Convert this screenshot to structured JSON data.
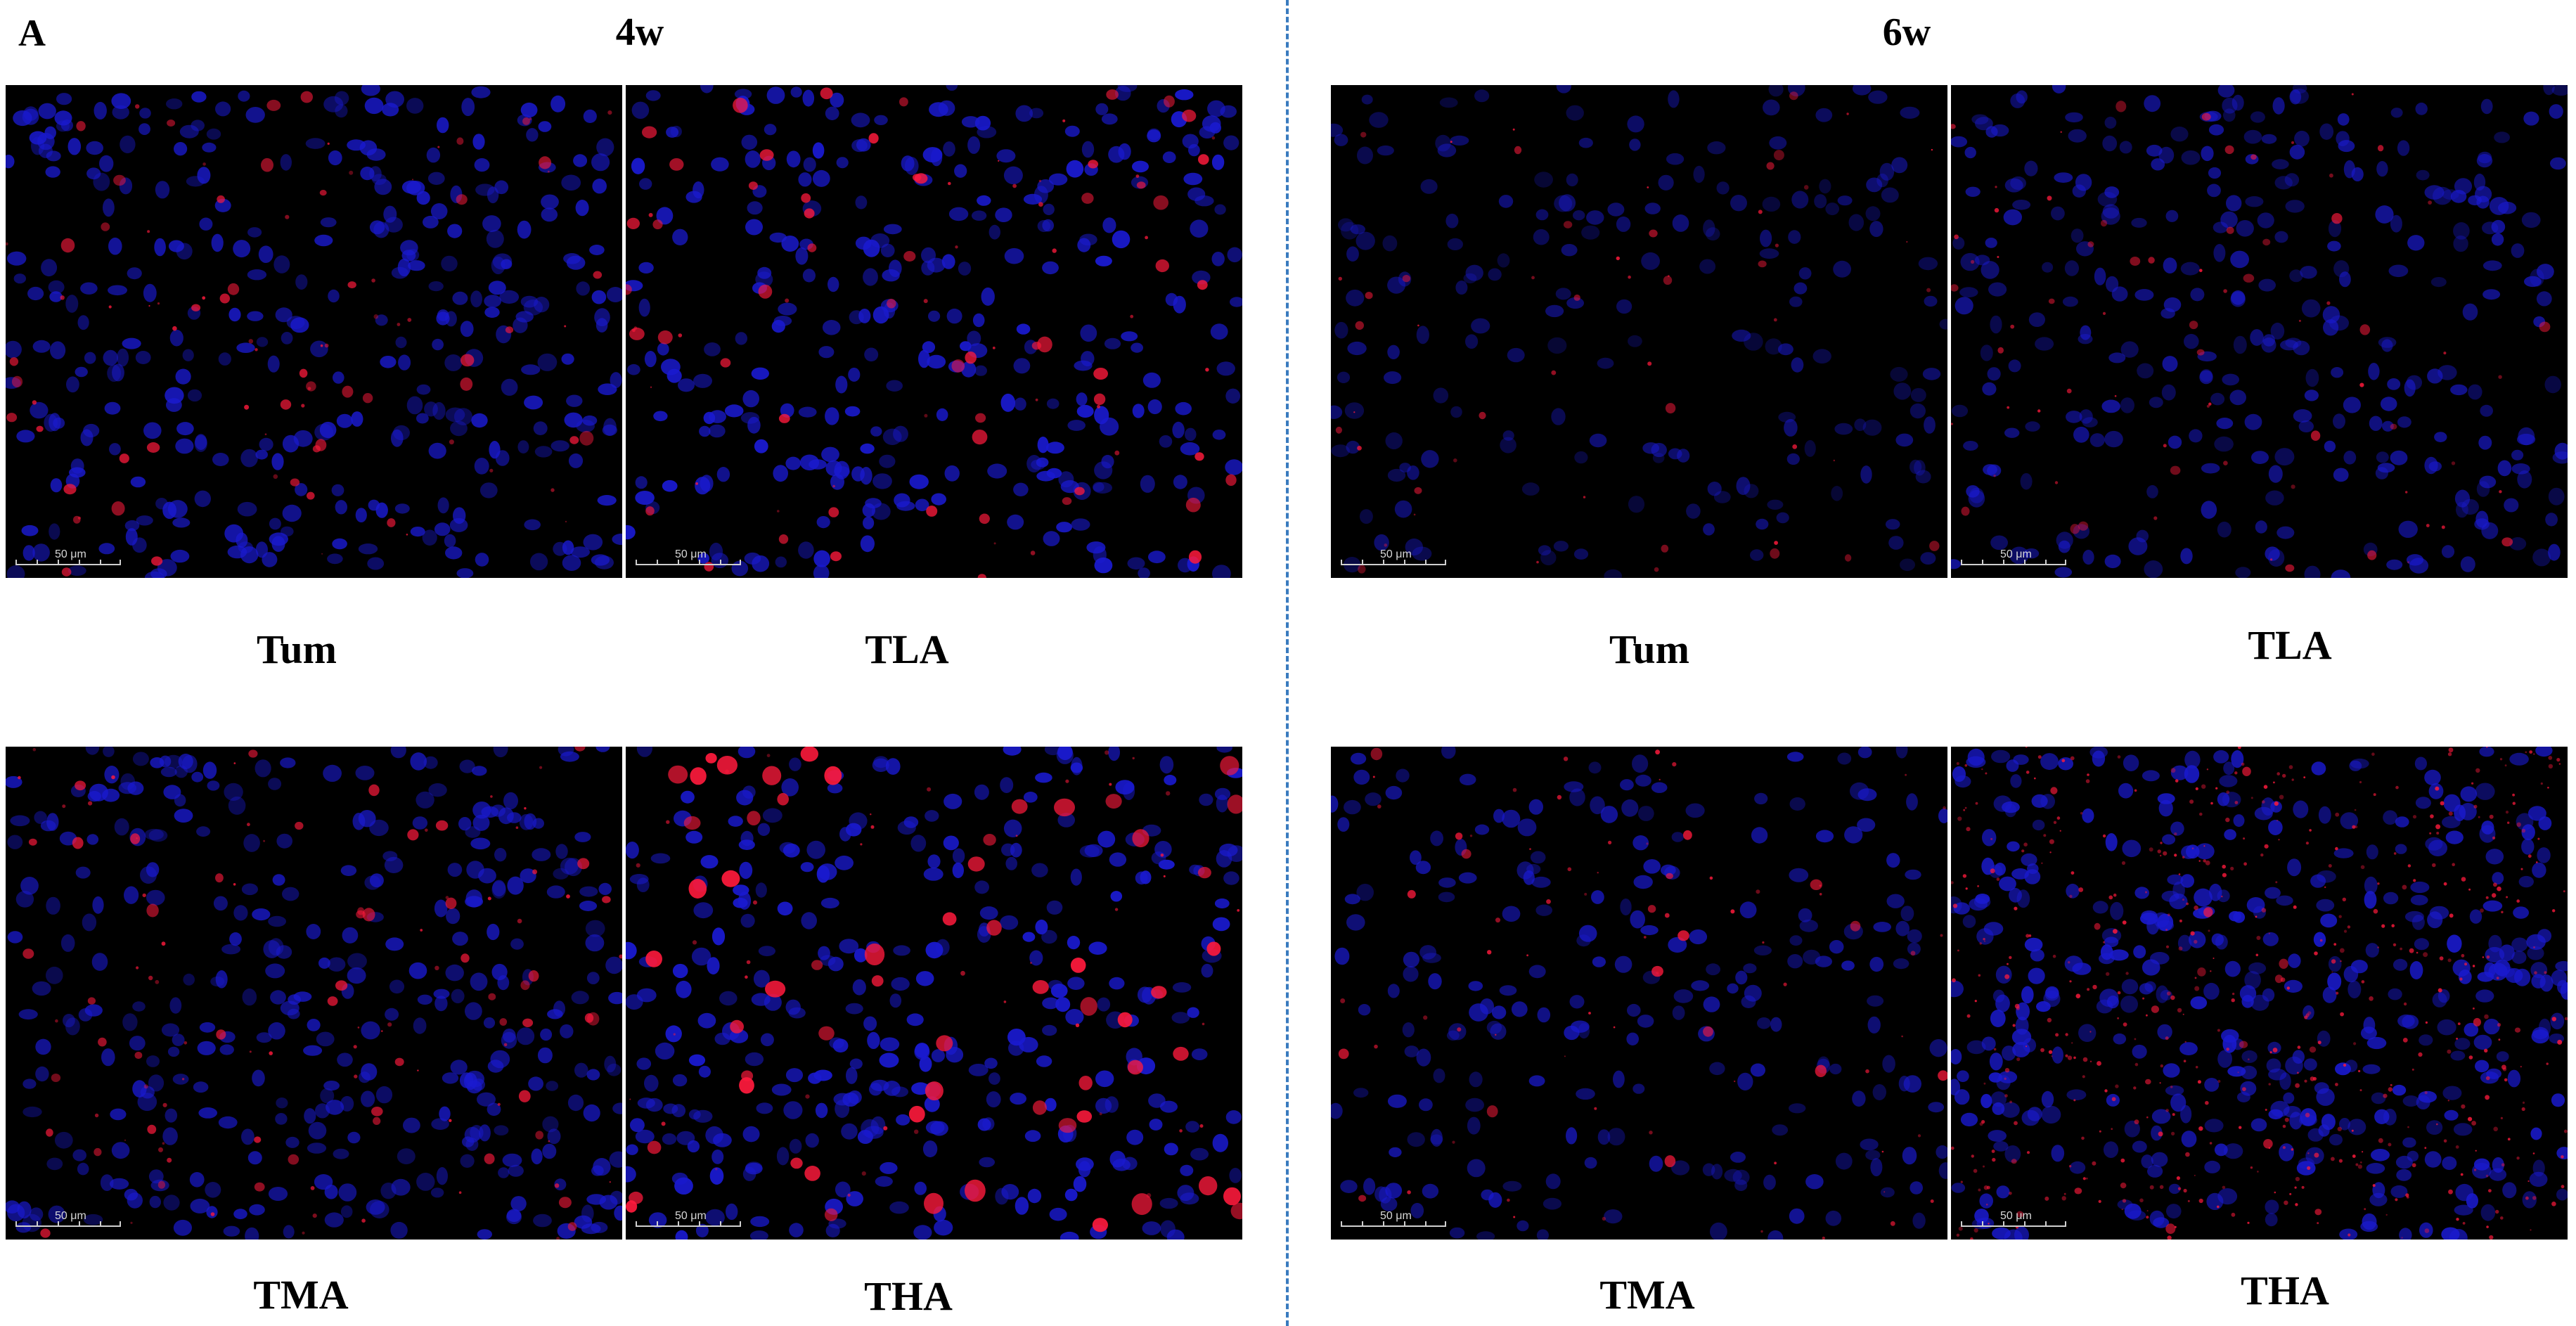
{
  "figure": {
    "panel_letter": "A",
    "weeks": {
      "left": "4w",
      "right": "6w"
    },
    "scale_label": "50 μm",
    "panels": [
      {
        "id": "4w-tum",
        "label": "Tum"
      },
      {
        "id": "4w-tla",
        "label": "TLA"
      },
      {
        "id": "4w-tma",
        "label": "TMA"
      },
      {
        "id": "4w-tha",
        "label": "THA"
      },
      {
        "id": "6w-tum",
        "label": "Tum"
      },
      {
        "id": "6w-tla",
        "label": "TLA"
      },
      {
        "id": "6w-tma",
        "label": "TMA"
      },
      {
        "id": "6w-tha",
        "label": "THA"
      }
    ]
  },
  "colors": {
    "nuclei": "#1a1ad0",
    "signal": "#ff1a3c",
    "background": "#000000",
    "divider": "#3a7bbf"
  }
}
